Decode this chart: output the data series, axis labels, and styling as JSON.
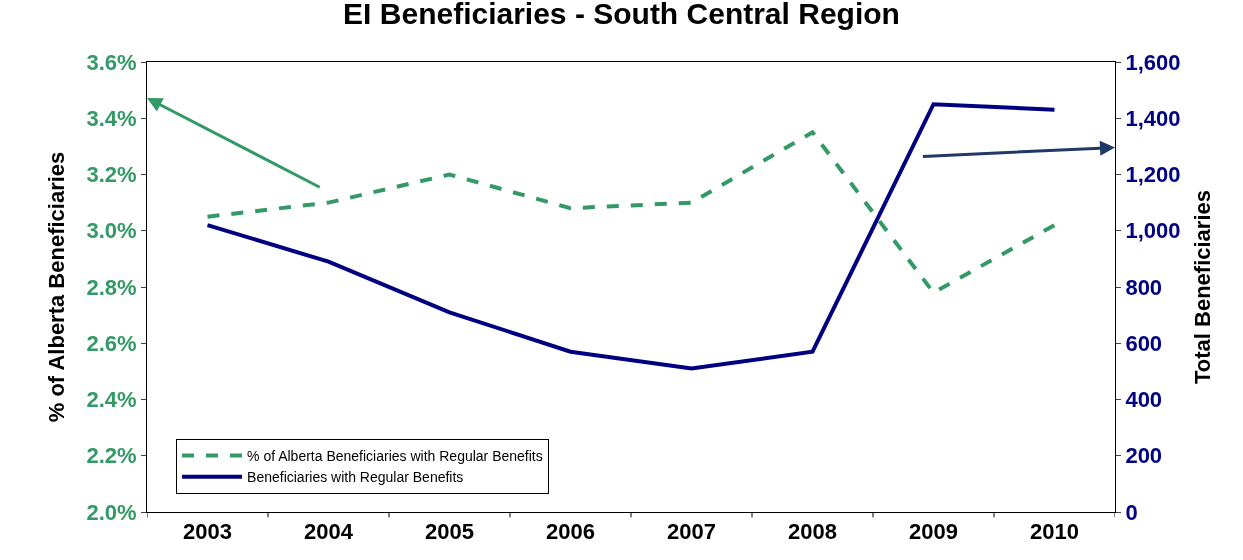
{
  "chart_data": {
    "type": "line",
    "title": "EI Beneficiaries - South Central Region",
    "ylabel": "% of Alberta Beneficiaries",
    "y2label": "Total Beneficiaries",
    "categories": [
      "2003",
      "2004",
      "2005",
      "2006",
      "2007",
      "2008",
      "2009",
      "2010"
    ],
    "series": [
      {
        "name": "% of Alberta Beneficiaries with Regular Benefits",
        "color": "#339966",
        "line_style": "dashed",
        "values": [
          3.05,
          3.1,
          3.2,
          3.08,
          3.1,
          3.35,
          2.78,
          3.02
        ]
      },
      {
        "name": "Beneficiaries with Regular Benefits",
        "color": "#000080",
        "line_style": "solid",
        "axis": "y2",
        "values": [
          1020,
          890,
          710,
          570,
          510,
          570,
          1450,
          1430
        ]
      }
    ],
    "ylim": [
      2.0,
      3.6
    ],
    "yticks": [
      {
        "value": 2.0,
        "label": "2.0%"
      },
      {
        "value": 2.2,
        "label": "2.2%"
      },
      {
        "value": 2.4,
        "label": "2.4%"
      },
      {
        "value": 2.6,
        "label": "2.6%"
      },
      {
        "value": 2.8,
        "label": "2.8%"
      },
      {
        "value": 3.0,
        "label": "3.0%"
      },
      {
        "value": 3.2,
        "label": "3.2%"
      },
      {
        "value": 3.4,
        "label": "3.4%"
      },
      {
        "value": 3.6,
        "label": "3.6%"
      }
    ],
    "y2lim": [
      0,
      1600
    ],
    "y2ticks": [
      0,
      {
        "value": 200,
        "label": "200"
      },
      {
        "value": 400,
        "label": "400"
      },
      {
        "value": 600,
        "label": "600"
      },
      {
        "value": 800,
        "label": "800"
      },
      {
        "value": 1000,
        "label": "1,000"
      },
      {
        "value": 1200,
        "label": "1,200"
      },
      {
        "value": 1400,
        "label": "1,400"
      },
      {
        "value": 1600,
        "label": "1,600"
      }
    ],
    "legend": "bottom left",
    "marker": "none"
  }
}
